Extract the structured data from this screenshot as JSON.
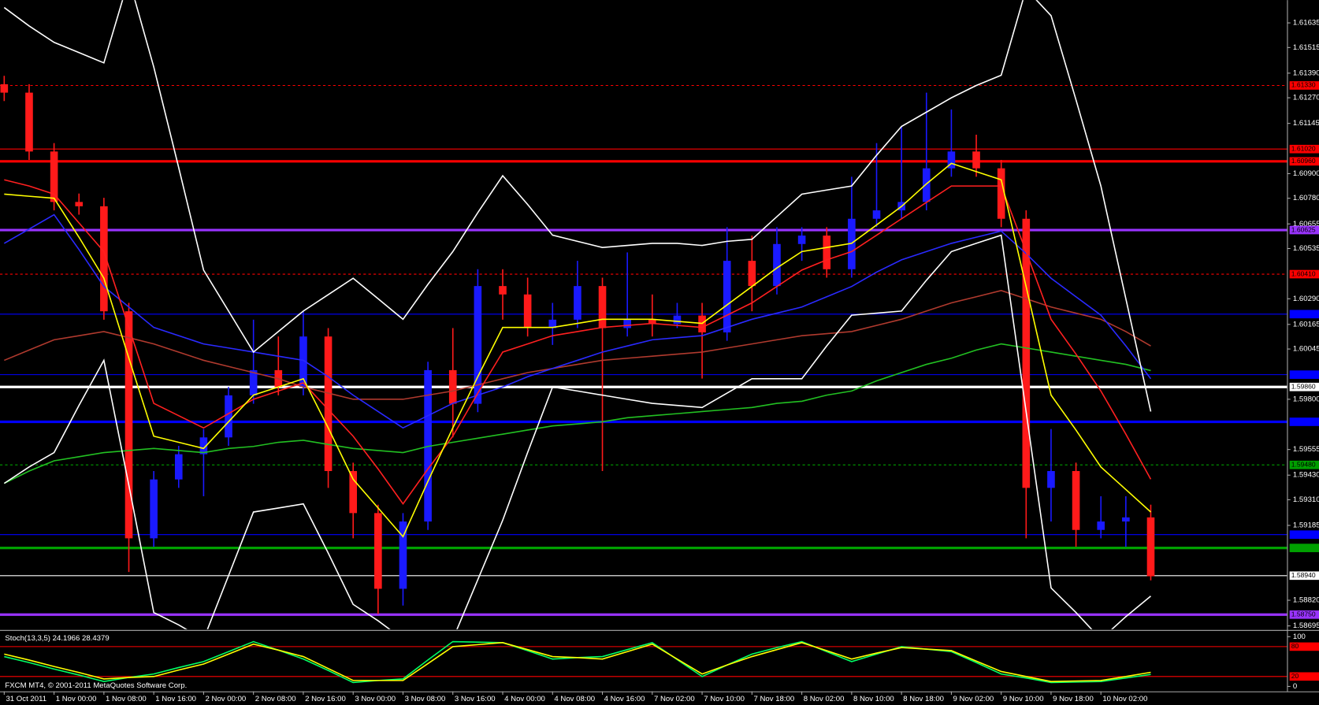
{
  "chart_data": [
    {
      "type": "candlestick",
      "categories": [
        "31 Oct 2011",
        null,
        "1 Nov 00:00",
        null,
        "1 Nov 08:00",
        null,
        "1 Nov 16:00",
        null,
        "2 Nov 00:00",
        null,
        "2 Nov 08:00",
        null,
        "2 Nov 16:00",
        null,
        "3 Nov 00:00",
        null,
        "3 Nov 08:00",
        null,
        "3 Nov 16:00",
        null,
        "4 Nov 00:00",
        null,
        "4 Nov 08:00",
        null,
        "4 Nov 16:00",
        null,
        "7 Nov 02:00",
        null,
        "7 Nov 10:00",
        null,
        "7 Nov 18:00",
        null,
        "8 Nov 02:00",
        null,
        "8 Nov 10:00",
        null,
        "8 Nov 18:00",
        null,
        "9 Nov 02:00",
        null,
        "9 Nov 10:00",
        null,
        "9 Nov 18:00",
        null,
        "10 Nov 02:00",
        null,
        null
      ],
      "open": [
        1.61336,
        1.61295,
        1.61008,
        1.60762,
        1.60741,
        1.60229,
        1.59122,
        1.59409,
        1.59532,
        1.59614,
        1.59819,
        1.59942,
        1.5986,
        1.60106,
        1.5945,
        1.59245,
        1.58876,
        1.59204,
        1.59942,
        1.59778,
        1.60352,
        1.60311,
        1.60147,
        1.60188,
        1.60352,
        1.60147,
        1.60188,
        1.60167,
        1.60208,
        1.60126,
        1.60475,
        1.60352,
        1.60557,
        1.60598,
        1.60434,
        1.6068,
        1.60721,
        1.60762,
        1.60926,
        1.61008,
        1.60926,
        1.6068,
        1.59368,
        1.5945,
        1.59163,
        1.59204,
        1.59224
      ],
      "high": [
        1.61377,
        1.61336,
        1.61049,
        1.60803,
        1.60782,
        1.6027,
        1.5945,
        1.59573,
        1.59655,
        1.5986,
        1.60188,
        1.60106,
        1.60229,
        1.60147,
        1.59491,
        1.59286,
        1.59245,
        1.59983,
        1.60147,
        1.60434,
        1.60434,
        1.60393,
        1.6027,
        1.60475,
        1.60393,
        1.60516,
        1.60311,
        1.6027,
        1.6027,
        1.60639,
        1.60598,
        1.60639,
        1.60639,
        1.60639,
        1.60885,
        1.61049,
        1.61131,
        1.61295,
        1.61213,
        1.6109,
        1.60967,
        1.60721,
        1.59655,
        1.59491,
        1.59327,
        1.59327,
        1.59286
      ],
      "low": [
        1.61254,
        1.60967,
        1.60721,
        1.607,
        1.60188,
        1.58958,
        1.59081,
        1.59368,
        1.59327,
        1.59573,
        1.59778,
        1.59819,
        1.59819,
        1.59368,
        1.59122,
        1.58753,
        1.58794,
        1.59163,
        1.59614,
        1.59737,
        1.60188,
        1.60106,
        1.60065,
        1.60147,
        1.5945,
        1.60106,
        1.60106,
        1.60147,
        1.59901,
        1.60085,
        1.60229,
        1.60311,
        1.60475,
        1.60393,
        1.60393,
        1.60639,
        1.6068,
        1.60721,
        1.60885,
        1.60885,
        1.60639,
        1.59122,
        1.59204,
        1.59081,
        1.59122,
        1.59081,
        1.58917
      ],
      "close": [
        1.61295,
        1.61008,
        1.60762,
        1.60741,
        1.60229,
        1.59122,
        1.59409,
        1.59532,
        1.59614,
        1.59819,
        1.59942,
        1.5986,
        1.60106,
        1.5945,
        1.59245,
        1.58876,
        1.59204,
        1.59942,
        1.59778,
        1.60352,
        1.60311,
        1.60147,
        1.60188,
        1.60352,
        1.60147,
        1.60188,
        1.60167,
        1.60208,
        1.60126,
        1.60475,
        1.60352,
        1.60557,
        1.60598,
        1.60434,
        1.6068,
        1.60721,
        1.60762,
        1.60926,
        1.61008,
        1.60926,
        1.6068,
        1.59368,
        1.5945,
        1.59163,
        1.59204,
        1.59224,
        1.58937
      ],
      "up_color": "#1a1aff",
      "down_color": "#ff1a1a",
      "series": [
        {
          "color": "#22c022",
          "values": [
            1.5939,
            1.5945,
            1.595,
            1.5952,
            1.5954,
            1.5955,
            1.5956,
            1.5955,
            1.5954,
            1.5956,
            1.5957,
            1.5959,
            1.596,
            1.5958,
            1.5956,
            1.5955,
            1.5954,
            1.5957,
            1.5959,
            1.5961,
            1.5963,
            1.5965,
            1.5967,
            1.5968,
            1.5969,
            1.5971,
            1.5972,
            1.5973,
            1.5974,
            1.5975,
            1.5976,
            1.5978,
            1.5979,
            1.5982,
            1.5984,
            1.5989,
            1.5993,
            1.5997,
            1.6,
            1.6004,
            1.6007,
            1.6005,
            1.6003,
            1.6001,
            1.5999,
            1.5997,
            1.5994
          ]
        },
        {
          "color": "#b03a2e",
          "values": [
            1.5999,
            1.6004,
            1.6009,
            1.6011,
            1.6013,
            1.601,
            1.6007,
            1.6003,
            1.5999,
            1.5996,
            1.5993,
            1.599,
            1.5986,
            1.5983,
            1.598,
            1.598,
            1.598,
            1.5982,
            1.5984,
            1.5987,
            1.599,
            1.5993,
            1.5995,
            1.5997,
            1.5999,
            1.6,
            1.6001,
            1.6002,
            1.6003,
            1.6005,
            1.6007,
            1.6009,
            1.6011,
            1.6012,
            1.6013,
            1.6016,
            1.6019,
            1.6023,
            1.6027,
            1.603,
            1.6033,
            1.6029,
            1.6025,
            1.6022,
            1.6019,
            1.6013,
            1.6006
          ]
        },
        {
          "color": "#2a2aff",
          "values": [
            1.6056,
            1.6063,
            1.607,
            1.6053,
            1.6035,
            1.6025,
            1.6015,
            1.6011,
            1.6007,
            1.6005,
            1.6003,
            1.6001,
            1.5999,
            1.5991,
            1.5982,
            1.5974,
            1.5966,
            1.5972,
            1.5978,
            1.5982,
            1.5986,
            1.5991,
            1.5995,
            1.5999,
            1.6003,
            1.6006,
            1.6009,
            1.601,
            1.6011,
            1.6015,
            1.6019,
            1.6022,
            1.6025,
            1.603,
            1.6035,
            1.6042,
            1.6048,
            1.6052,
            1.6056,
            1.6059,
            1.6062,
            1.6051,
            1.6039,
            1.603,
            1.6021,
            1.6006,
            1.599
          ]
        },
        {
          "color": "#ffffff",
          "values": [
            1.6171,
            1.6162,
            1.6154,
            1.6149,
            1.6144,
            1.6185,
            1.6142,
            1.6093,
            1.6043,
            1.6023,
            1.6003,
            1.6013,
            1.6023,
            1.6031,
            1.6039,
            1.6029,
            1.6019,
            1.6036,
            1.6052,
            1.6071,
            1.6089,
            1.6075,
            1.606,
            1.6057,
            1.6054,
            1.6055,
            1.6056,
            1.6056,
            1.6055,
            1.6057,
            1.6058,
            1.6069,
            1.608,
            1.6082,
            1.6084,
            1.6099,
            1.6113,
            1.612,
            1.6127,
            1.6133,
            1.6138,
            1.618,
            1.6167,
            1.6126,
            1.6084,
            1.6029,
            1.5974
          ]
        },
        {
          "color": "#ffffff",
          "values": [
            1.5939,
            1.5947,
            1.5954,
            1.5977,
            1.5999,
            1.5938,
            1.5876,
            1.587,
            1.5863,
            1.5894,
            1.5925,
            1.5927,
            1.5929,
            1.5905,
            1.588,
            1.5872,
            1.5863,
            1.5863,
            1.5863,
            1.5892,
            1.5921,
            1.5954,
            1.5986,
            1.5984,
            1.5982,
            1.598,
            1.5978,
            1.5977,
            1.5976,
            1.5983,
            1.599,
            1.599,
            1.599,
            1.6006,
            1.6021,
            1.6022,
            1.6023,
            1.6038,
            1.6052,
            1.6056,
            1.606,
            1.5974,
            1.5888,
            1.5876,
            1.5863,
            1.5874,
            1.5884
          ]
        },
        {
          "color": "#ff2020",
          "values": [
            1.6087,
            1.6084,
            1.608,
            1.6066,
            1.6052,
            1.6015,
            1.5978,
            1.5972,
            1.5966,
            1.5973,
            1.598,
            1.5984,
            1.5988,
            1.5975,
            1.5962,
            1.5946,
            1.5929,
            1.5946,
            1.5962,
            1.5983,
            1.6003,
            1.6007,
            1.6011,
            1.6013,
            1.6015,
            1.6016,
            1.6017,
            1.6016,
            1.6015,
            1.6021,
            1.6027,
            1.6035,
            1.6043,
            1.6048,
            1.6052,
            1.606,
            1.6068,
            1.6076,
            1.6084,
            1.6084,
            1.6084,
            1.6052,
            1.6019,
            1.6002,
            1.5984,
            1.5963,
            1.5941
          ]
        },
        {
          "color": "#ffff00",
          "values": [
            1.608,
            1.6079,
            1.6078,
            1.6059,
            1.6039,
            1.6,
            1.5962,
            1.5959,
            1.5956,
            1.5969,
            1.5982,
            1.5986,
            1.599,
            1.5966,
            1.5941,
            1.5927,
            1.5913,
            1.594,
            1.5966,
            1.5991,
            1.6015,
            1.6015,
            1.6015,
            1.6017,
            1.6019,
            1.6019,
            1.6019,
            1.6018,
            1.6017,
            1.6026,
            1.6035,
            1.6044,
            1.6052,
            1.6054,
            1.6056,
            1.6065,
            1.6074,
            1.6085,
            1.6095,
            1.6091,
            1.6087,
            1.6035,
            1.5982,
            1.5965,
            1.5947,
            1.5936,
            1.5925
          ]
        }
      ],
      "levels": [
        {
          "value": 1.6133,
          "label": "1.61330",
          "color": "#ff0000",
          "style": "dashed"
        },
        {
          "value": 1.6102,
          "label": "1.61020",
          "color": "#ff0000",
          "style": "thin"
        },
        {
          "value": 1.6096,
          "label": "1.60960",
          "color": "#ff0000",
          "style": "thick"
        },
        {
          "value": 1.60625,
          "label": "1.60625",
          "color": "#9933ff",
          "style": "thick"
        },
        {
          "value": 1.6041,
          "label": "1.60410",
          "color": "#ff0000",
          "style": "dashed"
        },
        {
          "value": 1.60215,
          "label": null,
          "color": "#0000ff",
          "style": "thin"
        },
        {
          "value": 1.5992,
          "label": null,
          "color": "#0000ff",
          "style": "thin"
        },
        {
          "value": 1.5986,
          "label": "1.59860",
          "color": "#ffffff",
          "style": "thick"
        },
        {
          "value": 1.5969,
          "label": null,
          "color": "#0000ff",
          "style": "thick"
        },
        {
          "value": 1.5948,
          "label": "1.59480",
          "color": "#00a000",
          "style": "dashed"
        },
        {
          "value": 1.5914,
          "label": null,
          "color": "#0000ff",
          "style": "thin"
        },
        {
          "value": 1.59075,
          "label": null,
          "color": "#00a000",
          "style": "thick"
        },
        {
          "value": 1.5894,
          "label": "1.58940",
          "color": "#ffffff",
          "style": "thin"
        },
        {
          "value": 1.5875,
          "label": "1.58750",
          "color": "#9933ff",
          "style": "thick"
        }
      ],
      "ylim": [
        1.58679,
        1.61746
      ],
      "yticks": [
        1.61635,
        1.61515,
        {
          "value": 1.6139,
          "label": "1.61390"
        },
        {
          "value": 1.6127,
          "label": "1.61270"
        },
        1.61145,
        {
          "value": 1.609,
          "label": "1.60900"
        },
        {
          "value": 1.6078,
          "label": "1.60780"
        },
        1.60655,
        1.60535,
        {
          "value": 1.6029,
          "label": "1.60290"
        },
        1.60165,
        1.60045,
        {
          "value": 1.598,
          "label": "1.59800"
        },
        1.59555,
        {
          "value": 1.5943,
          "label": "1.59430"
        },
        {
          "value": 1.5931,
          "label": "1.59310"
        },
        1.59185,
        {
          "value": 1.5882,
          "label": "1.58820"
        },
        1.58695
      ]
    },
    {
      "type": "line",
      "title": "Stoch(13,3,5) 24.1966 28.4379",
      "annotation": "FXCM MT4, © 2001-2011 MetaQuotes Software Corp.",
      "series": [
        {
          "color": "#00ff66",
          "values": [
            60,
            48,
            35,
            23,
            10,
            18,
            25,
            38,
            50,
            70,
            90,
            73,
            55,
            32,
            8,
            12,
            15,
            53,
            90,
            89,
            88,
            72,
            55,
            58,
            60,
            74,
            88,
            54,
            20,
            43,
            65,
            78,
            90,
            70,
            50,
            65,
            80,
            75,
            70,
            48,
            25,
            17,
            8,
            9,
            10,
            17,
            24.1966
          ]
        },
        {
          "color": "#ffff00",
          "values": [
            65,
            53,
            40,
            28,
            15,
            18,
            20,
            33,
            45,
            65,
            85,
            73,
            60,
            36,
            12,
            12,
            12,
            46,
            80,
            84,
            88,
            74,
            60,
            58,
            55,
            70,
            85,
            55,
            25,
            43,
            60,
            74,
            88,
            72,
            55,
            67,
            78,
            75,
            72,
            51,
            30,
            20,
            10,
            11,
            12,
            20,
            28.4379
          ]
        }
      ],
      "levels": [
        {
          "value": 80,
          "color": "#ff0000"
        },
        {
          "value": 20,
          "color": "#ff0000"
        }
      ],
      "ylim": [
        -10,
        110
      ],
      "yticks": [
        0,
        100
      ]
    }
  ]
}
